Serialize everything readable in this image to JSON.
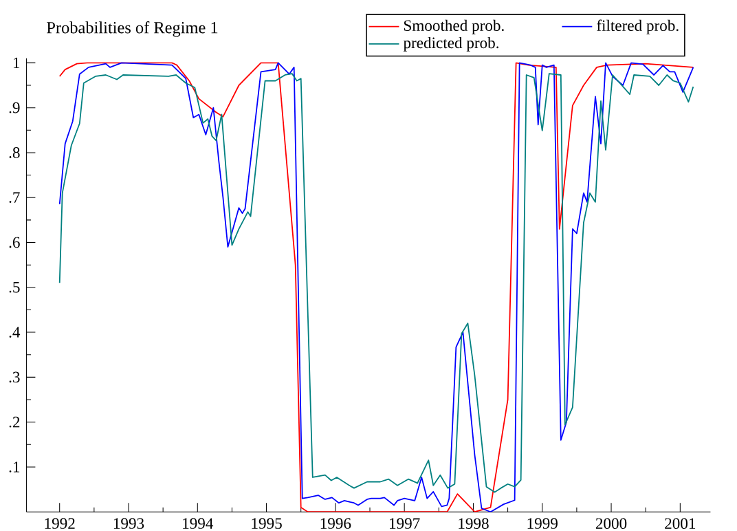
{
  "chart_data": {
    "type": "line",
    "title": "Probabilities of Regime 1",
    "xlim": [
      1991.52,
      2001.44
    ],
    "ylim": [
      0,
      1.01
    ],
    "xticks": [
      1992,
      1993,
      1994,
      1995,
      1996,
      1997,
      1998,
      1999,
      2000,
      2001
    ],
    "yticks": [
      {
        "value": 0.1,
        "label": ".1"
      },
      {
        "value": 0.2,
        "label": ".2"
      },
      {
        "value": 0.3,
        "label": ".3"
      },
      {
        "value": 0.4,
        "label": ".4"
      },
      {
        "value": 0.5,
        "label": ".5"
      },
      {
        "value": 0.6,
        "label": ".6"
      },
      {
        "value": 0.7,
        "label": ".7"
      },
      {
        "value": 0.8,
        "label": ".8"
      },
      {
        "value": 0.9,
        "label": ".9"
      },
      1
    ],
    "grid": false,
    "legend": "top right",
    "series": [
      {
        "name": "Smoothed prob.",
        "color": "#ff0000",
        "x": [
          1992.0,
          1992.08,
          1992.25,
          1992.4,
          1993.63,
          1993.7,
          1993.88,
          1994.02,
          1994.27,
          1994.37,
          1994.6,
          1994.92,
          1995.17,
          1995.42,
          1995.5,
          1995.6,
          1997.62,
          1997.77,
          1998.02,
          1998.25,
          1998.5,
          1998.62,
          1998.8,
          1999.2,
          1999.25,
          1999.44,
          1999.6,
          1999.79,
          1999.94,
          2000.5,
          2001.19
        ],
        "values": [
          0.97,
          0.985,
          0.998,
          1.0,
          1.0,
          0.995,
          0.96,
          0.92,
          0.89,
          0.88,
          0.95,
          1.0,
          1.0,
          0.55,
          0.01,
          0.0,
          0.0,
          0.04,
          0.0,
          0.01,
          0.25,
          1.0,
          0.995,
          0.99,
          0.63,
          0.905,
          0.95,
          0.99,
          0.995,
          0.998,
          0.99
        ]
      },
      {
        "name": "filtered prob.",
        "color": "#0000ff",
        "x": [
          1992.0,
          1992.08,
          1992.19,
          1992.29,
          1992.42,
          1992.67,
          1992.73,
          1992.9,
          1993.63,
          1993.83,
          1993.94,
          1994.02,
          1994.12,
          1994.23,
          1994.31,
          1994.37,
          1994.44,
          1994.6,
          1994.65,
          1994.69,
          1994.92,
          1995.13,
          1995.17,
          1995.33,
          1995.4,
          1995.52,
          1995.6,
          1995.75,
          1995.85,
          1995.95,
          1996.05,
          1996.13,
          1996.27,
          1996.33,
          1996.46,
          1996.52,
          1996.65,
          1996.71,
          1996.85,
          1996.9,
          1997.0,
          1997.15,
          1997.25,
          1997.33,
          1997.42,
          1997.54,
          1997.62,
          1997.65,
          1997.75,
          1997.85,
          1998.02,
          1998.12,
          1998.25,
          1998.44,
          1998.6,
          1998.67,
          1998.83,
          1998.9,
          1998.94,
          1999.0,
          1999.06,
          1999.17,
          1999.27,
          1999.35,
          1999.44,
          1999.5,
          1999.6,
          1999.65,
          1999.77,
          1999.85,
          1999.92,
          2000.02,
          2000.17,
          2000.29,
          2000.46,
          2000.62,
          2000.75,
          2000.85,
          2000.92,
          2001.04,
          2001.19
        ],
        "values": [
          0.685,
          0.82,
          0.87,
          0.975,
          0.99,
          0.998,
          0.99,
          1.0,
          0.995,
          0.965,
          0.878,
          0.885,
          0.84,
          0.9,
          0.78,
          0.7,
          0.59,
          0.677,
          0.665,
          0.675,
          0.98,
          0.985,
          1.0,
          0.975,
          0.99,
          0.03,
          0.032,
          0.037,
          0.028,
          0.032,
          0.02,
          0.025,
          0.02,
          0.015,
          0.028,
          0.03,
          0.03,
          0.032,
          0.015,
          0.025,
          0.03,
          0.025,
          0.077,
          0.03,
          0.045,
          0.012,
          0.015,
          0.03,
          0.367,
          0.4,
          0.127,
          0.008,
          0.0,
          0.017,
          0.026,
          1.0,
          0.995,
          0.99,
          0.862,
          0.995,
          0.99,
          0.995,
          0.16,
          0.2,
          0.63,
          0.62,
          0.71,
          0.69,
          0.925,
          0.82,
          1.0,
          0.97,
          0.95,
          1.0,
          0.997,
          0.973,
          0.994,
          0.98,
          0.98,
          0.935,
          0.99
        ]
      },
      {
        "name": "predicted prob.",
        "color": "#008080",
        "x": [
          1992.0,
          1992.04,
          1992.17,
          1992.29,
          1992.35,
          1992.52,
          1992.67,
          1992.83,
          1992.92,
          1993.58,
          1993.69,
          1993.83,
          1993.96,
          1994.08,
          1994.15,
          1994.21,
          1994.27,
          1994.35,
          1994.5,
          1994.6,
          1994.73,
          1994.77,
          1994.98,
          1995.08,
          1995.13,
          1995.27,
          1995.37,
          1995.44,
          1995.5,
          1995.67,
          1995.85,
          1995.94,
          1996.02,
          1996.19,
          1996.27,
          1996.46,
          1996.65,
          1996.77,
          1996.9,
          1997.06,
          1997.19,
          1997.35,
          1997.42,
          1997.52,
          1997.63,
          1997.73,
          1997.83,
          1997.92,
          1998.02,
          1998.19,
          1998.31,
          1998.4,
          1998.5,
          1998.6,
          1998.69,
          1998.77,
          1998.88,
          1999.0,
          1999.1,
          1999.27,
          1999.33,
          1999.44,
          1999.6,
          1999.69,
          1999.77,
          1999.85,
          1999.92,
          2000.02,
          2000.27,
          2000.33,
          2000.56,
          2000.69,
          2000.81,
          2000.9,
          2001.0,
          2001.12,
          2001.19
        ],
        "values": [
          0.51,
          0.71,
          0.816,
          0.865,
          0.955,
          0.97,
          0.973,
          0.963,
          0.973,
          0.97,
          0.973,
          0.955,
          0.945,
          0.866,
          0.875,
          0.837,
          0.827,
          0.885,
          0.594,
          0.63,
          0.668,
          0.658,
          0.96,
          0.96,
          0.96,
          0.973,
          0.976,
          0.96,
          0.965,
          0.077,
          0.082,
          0.07,
          0.077,
          0.06,
          0.053,
          0.067,
          0.067,
          0.073,
          0.059,
          0.073,
          0.064,
          0.115,
          0.059,
          0.082,
          0.053,
          0.062,
          0.397,
          0.42,
          0.304,
          0.056,
          0.044,
          0.053,
          0.062,
          0.056,
          0.071,
          0.973,
          0.967,
          0.849,
          0.976,
          0.973,
          0.194,
          0.233,
          0.644,
          0.71,
          0.69,
          0.915,
          0.806,
          0.973,
          0.93,
          0.973,
          0.97,
          0.95,
          0.973,
          0.96,
          0.955,
          0.913,
          0.947
        ]
      }
    ]
  }
}
